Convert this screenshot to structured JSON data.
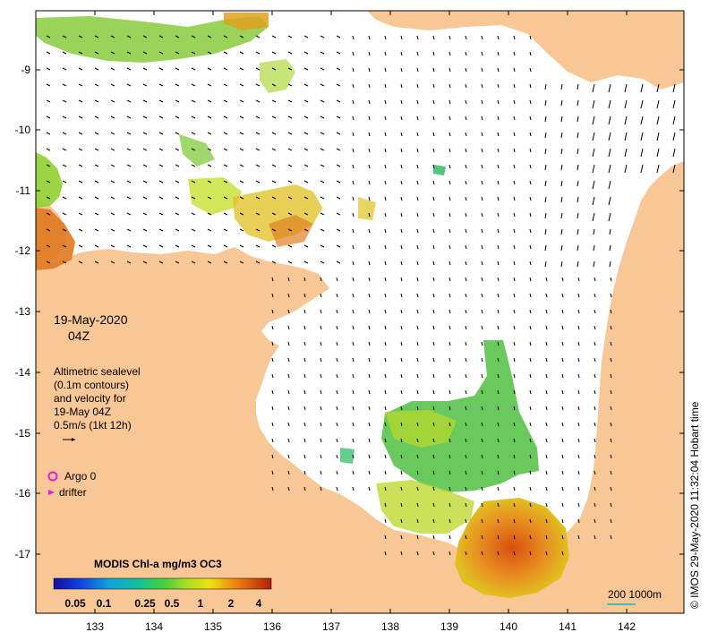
{
  "map": {
    "date": "19-May-2020",
    "time": "04Z",
    "legend_lines": [
      "Altimetric sealevel",
      "(0.1m contours)",
      "and velocity for",
      "19-May 04Z",
      "0.5m/s (1kt 12h)"
    ],
    "argo_label": "Argo 0",
    "drifter_label": "drifter",
    "colorbar_title": "MODIS Chl-a mg/m3 OC3",
    "colorbar_ticks": [
      "0.05",
      "0.1",
      "0.25",
      "0.5",
      "1",
      "2",
      "4"
    ],
    "scale_label": "200  1000m",
    "credit": "© IMOS 29-May-2020 11:32:04 Hobart time",
    "lon_ticks": [
      "133",
      "134",
      "135",
      "136",
      "137",
      "138",
      "139",
      "140",
      "141",
      "142"
    ],
    "lat_ticks": [
      "-9",
      "-10",
      "-11",
      "-12",
      "-13",
      "-14",
      "-15",
      "-16",
      "-17"
    ],
    "colors": {
      "land": "#f9c696",
      "ocean": "#ffffff",
      "arrow": "#000000",
      "argo": "#e020e0",
      "scale_line": "#40c0b0"
    }
  }
}
